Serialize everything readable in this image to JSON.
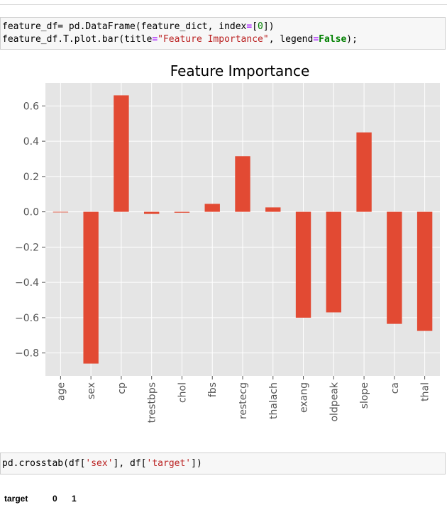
{
  "cells": [
    {
      "line1": {
        "a": "feature_df",
        "b": "= pd.DataFrame(feature_dict, index",
        "c": "=",
        "d": "[",
        "e": "0",
        "f": "])"
      },
      "line2": {
        "a": "feature_df.T.plot.bar(title",
        "b": "=",
        "c": "\"Feature Importance\"",
        "d": ", legend",
        "e": "=",
        "f": "False",
        "g": ");"
      }
    },
    {
      "line1": {
        "a": "pd.crosstab(df[",
        "b": "'sex'",
        "c": "], df[",
        "d": "'target'",
        "e": "])"
      }
    }
  ],
  "output_table": {
    "header_label": "target",
    "columns": [
      "0",
      "1"
    ]
  },
  "chart_data": {
    "type": "bar",
    "title": "Feature Importance",
    "xlabel": "",
    "ylabel": "",
    "categories": [
      "age",
      "sex",
      "cp",
      "trestbps",
      "chol",
      "fbs",
      "restecg",
      "thalach",
      "exang",
      "oldpeak",
      "slope",
      "ca",
      "thal"
    ],
    "values": [
      0.0,
      -0.86,
      0.66,
      -0.012,
      -0.005,
      0.045,
      0.315,
      0.025,
      -0.6,
      -0.57,
      0.45,
      -0.635,
      -0.675
    ],
    "ylim": [
      -0.93,
      0.73
    ],
    "yticks": [
      0.6,
      0.4,
      0.2,
      0.0,
      -0.2,
      -0.4,
      -0.6,
      -0.8
    ],
    "ytick_labels": [
      "0.6",
      "0.4",
      "0.2",
      "0.0",
      "−0.2",
      "−0.4",
      "−0.6",
      "−0.8"
    ],
    "grid": true,
    "legend": false,
    "style": "ggplot",
    "bar_color": "#E24A33",
    "background_color": "#E5E5E5"
  }
}
